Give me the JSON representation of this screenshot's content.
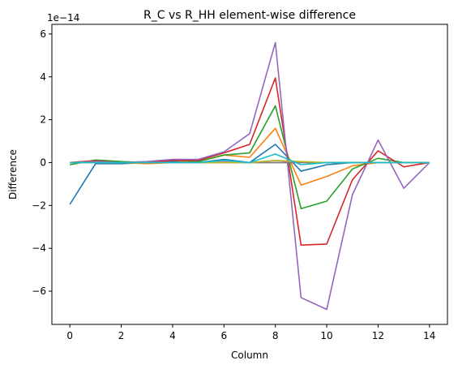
{
  "chart_data": {
    "type": "line",
    "title": "R_C vs R_HH element-wise difference",
    "xlabel": "Column",
    "ylabel": "Difference",
    "offset_text": "1e−14",
    "xlim": [
      -0.7,
      14.7
    ],
    "ylim": [
      -7.55,
      6.45
    ],
    "xticks": [
      0,
      2,
      4,
      6,
      8,
      10,
      12,
      14
    ],
    "yticks": [
      -6,
      -4,
      -2,
      0,
      2,
      4,
      6
    ],
    "ytick_labels": [
      "−6",
      "−4",
      "−2",
      "0",
      "2",
      "4",
      "6"
    ],
    "grid": false,
    "x": [
      0,
      1,
      2,
      3,
      4,
      5,
      6,
      7,
      8,
      9,
      10,
      11,
      12,
      13,
      14
    ],
    "series": [
      {
        "color": "#1f77b4",
        "values": [
          -1.95,
          -0.05,
          -0.05,
          0.0,
          0.05,
          0.0,
          0.15,
          0.0,
          0.85,
          -0.4,
          -0.1,
          0.0,
          0.0,
          0.0,
          0.0
        ]
      },
      {
        "color": "#ff7f0e",
        "values": [
          0.0,
          0.1,
          0.0,
          -0.05,
          0.0,
          0.05,
          0.35,
          0.25,
          1.6,
          -1.05,
          -0.65,
          -0.15,
          0.0,
          0.0,
          0.0
        ]
      },
      {
        "color": "#2ca02c",
        "values": [
          -0.1,
          0.12,
          0.05,
          0.0,
          0.12,
          0.05,
          0.35,
          0.45,
          2.65,
          -2.15,
          -1.8,
          -0.3,
          0.2,
          0.0,
          0.0
        ]
      },
      {
        "color": "#d62728",
        "values": [
          0.0,
          0.08,
          0.0,
          0.0,
          0.1,
          0.1,
          0.45,
          0.85,
          3.95,
          -3.85,
          -3.8,
          -0.8,
          0.55,
          -0.2,
          0.0
        ]
      },
      {
        "color": "#9467bd",
        "values": [
          0.0,
          0.05,
          0.0,
          0.05,
          0.15,
          0.15,
          0.5,
          1.35,
          5.6,
          -6.3,
          -6.85,
          -1.5,
          1.05,
          -1.2,
          0.0
        ]
      },
      {
        "color": "#8c564b",
        "values": [
          0.0,
          0.0,
          0.0,
          0.0,
          0.0,
          0.0,
          0.0,
          0.0,
          0.0,
          0.0,
          0.0,
          0.0,
          0.0,
          0.0,
          0.0
        ]
      },
      {
        "color": "#e377c2",
        "values": [
          0.0,
          0.0,
          0.0,
          0.0,
          0.0,
          0.0,
          0.05,
          0.0,
          0.1,
          0.0,
          0.0,
          0.0,
          0.0,
          0.0,
          0.0
        ]
      },
      {
        "color": "#7f7f7f",
        "values": [
          0.0,
          0.0,
          0.0,
          0.0,
          0.0,
          0.0,
          0.0,
          0.0,
          0.0,
          0.0,
          0.0,
          0.0,
          0.0,
          0.0,
          0.0
        ]
      },
      {
        "color": "#bcbd22",
        "values": [
          0.0,
          0.0,
          0.0,
          0.0,
          0.0,
          0.0,
          0.0,
          0.0,
          0.1,
          0.05,
          0.0,
          0.0,
          0.0,
          0.0,
          0.0
        ]
      },
      {
        "color": "#17becf",
        "values": [
          0.0,
          0.0,
          0.0,
          0.0,
          0.0,
          0.0,
          0.1,
          0.0,
          0.4,
          -0.1,
          0.0,
          0.0,
          0.0,
          0.0,
          0.0
        ]
      }
    ]
  }
}
